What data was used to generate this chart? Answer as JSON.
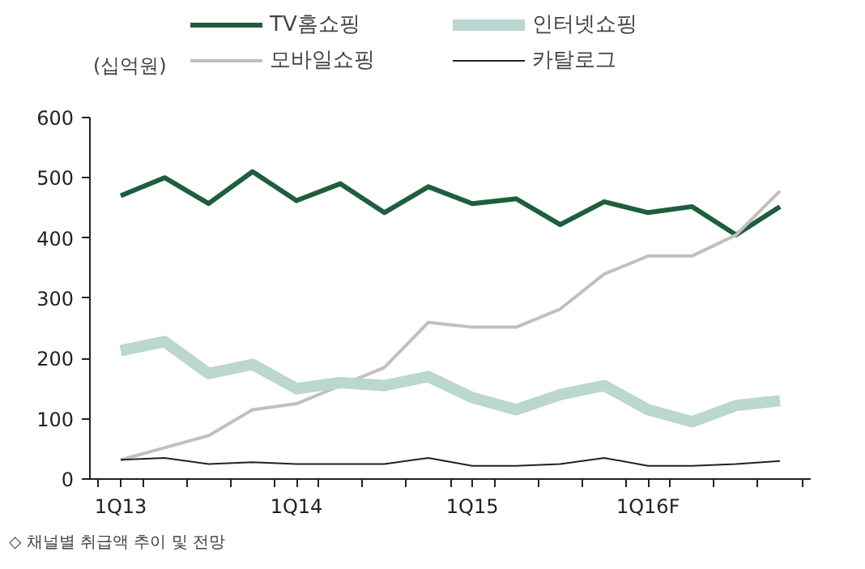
{
  "chart_data": {
    "type": "line",
    "ylabel": "(십억원)",
    "categories": [
      "1Q13",
      null,
      null,
      null,
      "1Q14",
      null,
      null,
      null,
      "1Q15",
      null,
      null,
      null,
      "1Q16F",
      null,
      null,
      null
    ],
    "ylim": [
      0,
      600
    ],
    "yticks": [
      0,
      100,
      200,
      300,
      400,
      500,
      600
    ],
    "grid": false,
    "legend": "top",
    "marker": "none",
    "series": [
      {
        "name": "TV홈쇼핑",
        "color": "#1e5e3e",
        "values": [
          470,
          500,
          457,
          510,
          462,
          490,
          442,
          485,
          457,
          465,
          422,
          460,
          442,
          452,
          405,
          452
        ]
      },
      {
        "name": "모바일쇼핑",
        "color": "#c0c0c0",
        "values": [
          32,
          52,
          72,
          115,
          125,
          155,
          185,
          260,
          252,
          252,
          282,
          340,
          370,
          370,
          405,
          478
        ]
      },
      {
        "name": "인터넷쇼핑",
        "color": "#bcd6d0",
        "values": [
          213,
          228,
          175,
          190,
          150,
          160,
          155,
          170,
          135,
          115,
          140,
          155,
          115,
          95,
          122,
          130
        ]
      },
      {
        "name": "카탈로그",
        "color": "#222222",
        "values": [
          32,
          35,
          25,
          28,
          25,
          25,
          25,
          35,
          22,
          22,
          25,
          35,
          22,
          22,
          25,
          30
        ]
      }
    ],
    "annotations": [
      "◇ 채널별 취급액 추이 및 전망"
    ]
  }
}
